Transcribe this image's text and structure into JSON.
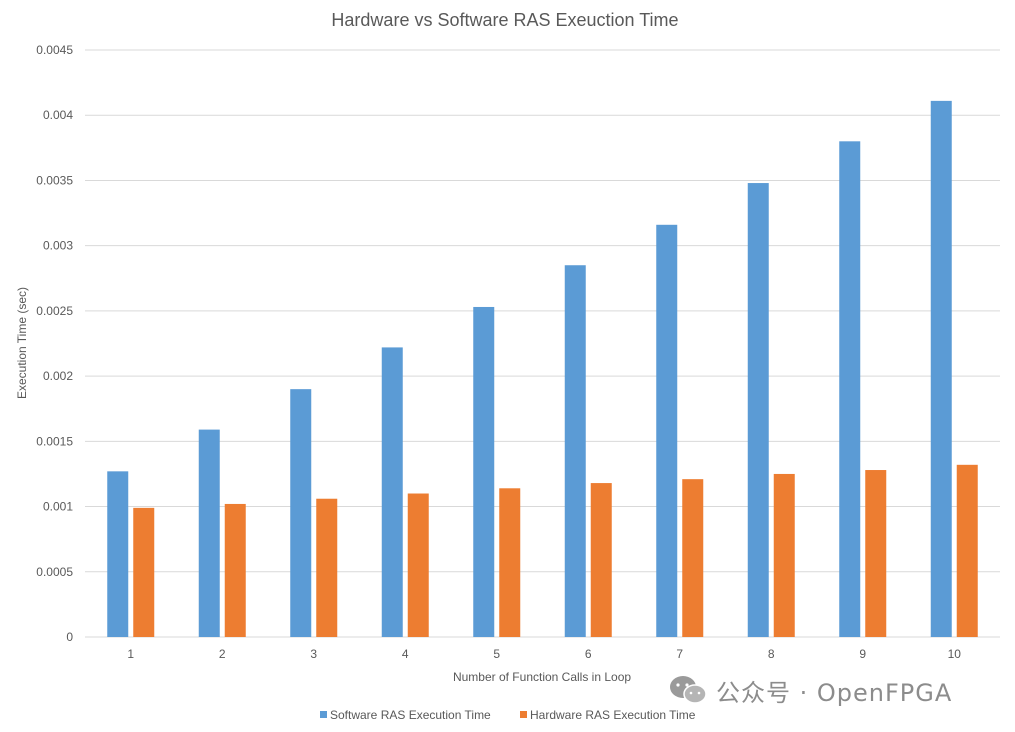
{
  "chart_data": {
    "type": "bar",
    "title": "Hardware vs Software RAS Exeuction Time",
    "xlabel": "Number of Function Calls in Loop",
    "ylabel": "Execution Time (sec)",
    "categories": [
      "1",
      "2",
      "3",
      "4",
      "5",
      "6",
      "7",
      "8",
      "9",
      "10"
    ],
    "ylim": [
      0,
      0.0045
    ],
    "yticks": [
      "0",
      "0.0005",
      "0.001",
      "0.0015",
      "0.002",
      "0.0025",
      "0.003",
      "0.0035",
      "0.004",
      "0.0045"
    ],
    "grid": true,
    "legend_position": "bottom",
    "series": [
      {
        "name": "Software RAS Execution Time",
        "color": "#5b9bd5",
        "values": [
          0.00127,
          0.00159,
          0.0019,
          0.00222,
          0.00253,
          0.00285,
          0.00316,
          0.00348,
          0.0038,
          0.00411
        ]
      },
      {
        "name": "Hardware RAS Execution Time",
        "color": "#ed7d31",
        "values": [
          0.00099,
          0.00102,
          0.00106,
          0.0011,
          0.00114,
          0.00118,
          0.00121,
          0.00125,
          0.00128,
          0.00132
        ]
      }
    ]
  },
  "watermark": {
    "text": "公众号 · OpenFPGA",
    "icon": "wechat-icon"
  }
}
